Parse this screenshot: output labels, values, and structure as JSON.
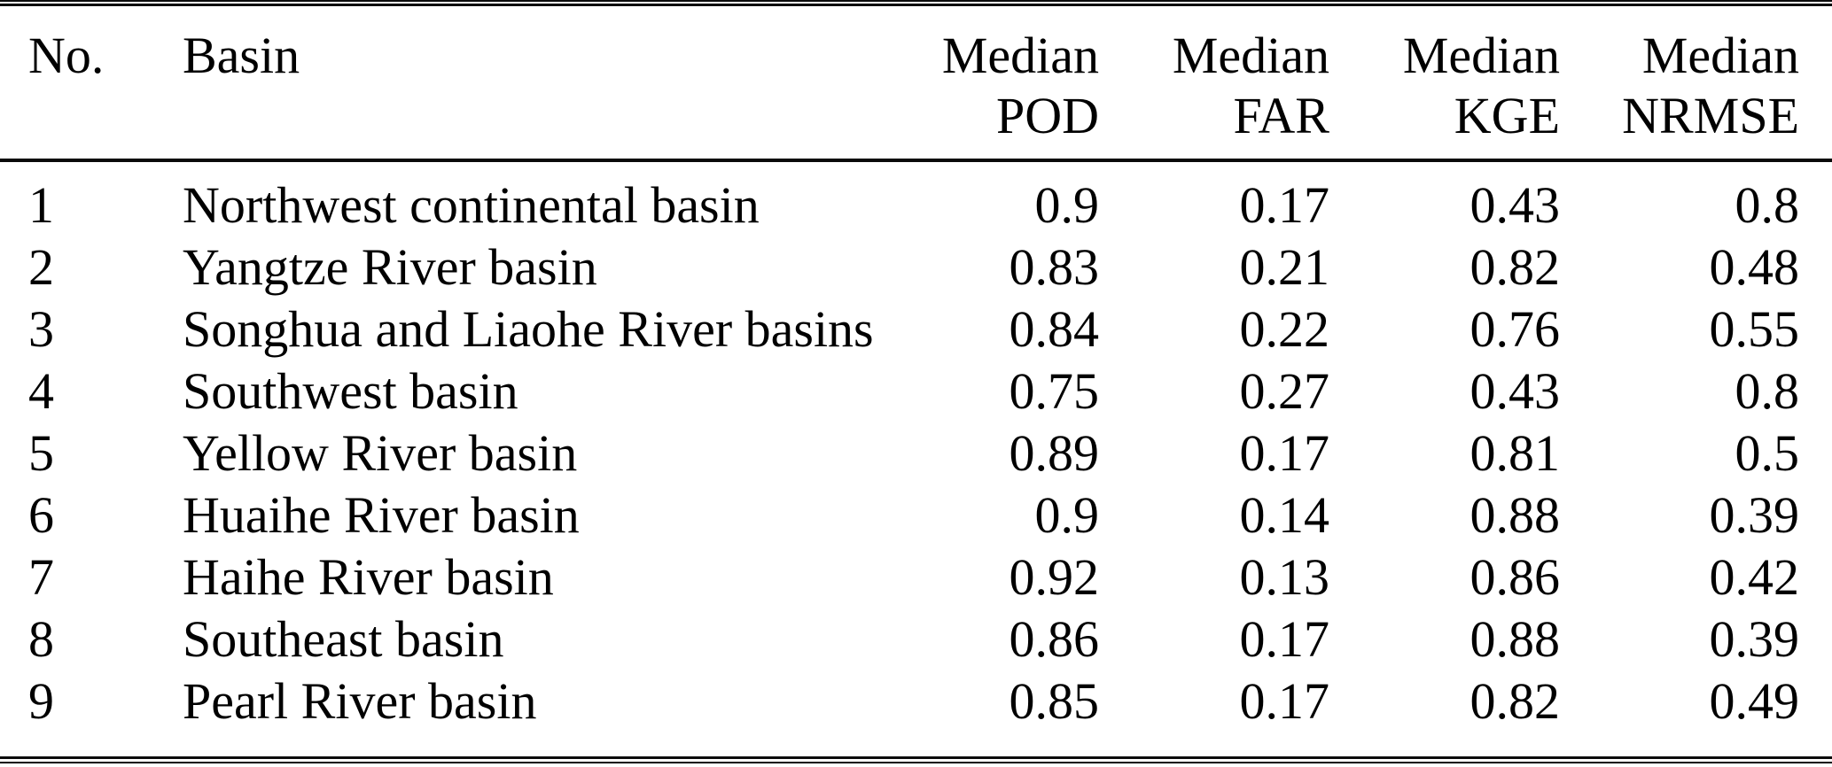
{
  "page": {
    "background": "#ffffff",
    "text_color": "#000000",
    "rule_color": "#0a0a0a"
  },
  "table": {
    "columns": [
      {
        "id": "no",
        "label": "No."
      },
      {
        "id": "basin",
        "label": "Basin"
      },
      {
        "id": "pod",
        "line1": "Median",
        "line2": "POD"
      },
      {
        "id": "far",
        "line1": "Median",
        "line2": "FAR"
      },
      {
        "id": "kge",
        "line1": "Median",
        "line2": "KGE"
      },
      {
        "id": "nrmse",
        "line1": "Median",
        "line2": "NRMSE"
      }
    ],
    "rows": [
      {
        "no": "1",
        "basin": "Northwest continental basin",
        "pod": "0.9",
        "far": "0.17",
        "kge": "0.43",
        "nrmse": "0.8"
      },
      {
        "no": "2",
        "basin": "Yangtze River basin",
        "pod": "0.83",
        "far": "0.21",
        "kge": "0.82",
        "nrmse": "0.48"
      },
      {
        "no": "3",
        "basin": "Songhua and Liaohe River basins",
        "pod": "0.84",
        "far": "0.22",
        "kge": "0.76",
        "nrmse": "0.55"
      },
      {
        "no": "4",
        "basin": "Southwest basin",
        "pod": "0.75",
        "far": "0.27",
        "kge": "0.43",
        "nrmse": "0.8"
      },
      {
        "no": "5",
        "basin": "Yellow River basin",
        "pod": "0.89",
        "far": "0.17",
        "kge": "0.81",
        "nrmse": "0.5"
      },
      {
        "no": "6",
        "basin": "Huaihe River basin",
        "pod": "0.9",
        "far": "0.14",
        "kge": "0.88",
        "nrmse": "0.39"
      },
      {
        "no": "7",
        "basin": "Haihe River basin",
        "pod": "0.92",
        "far": "0.13",
        "kge": "0.86",
        "nrmse": "0.42"
      },
      {
        "no": "8",
        "basin": "Southeast basin",
        "pod": "0.86",
        "far": "0.17",
        "kge": "0.88",
        "nrmse": "0.39"
      },
      {
        "no": "9",
        "basin": "Pearl River basin",
        "pod": "0.85",
        "far": "0.17",
        "kge": "0.82",
        "nrmse": "0.49"
      }
    ]
  }
}
